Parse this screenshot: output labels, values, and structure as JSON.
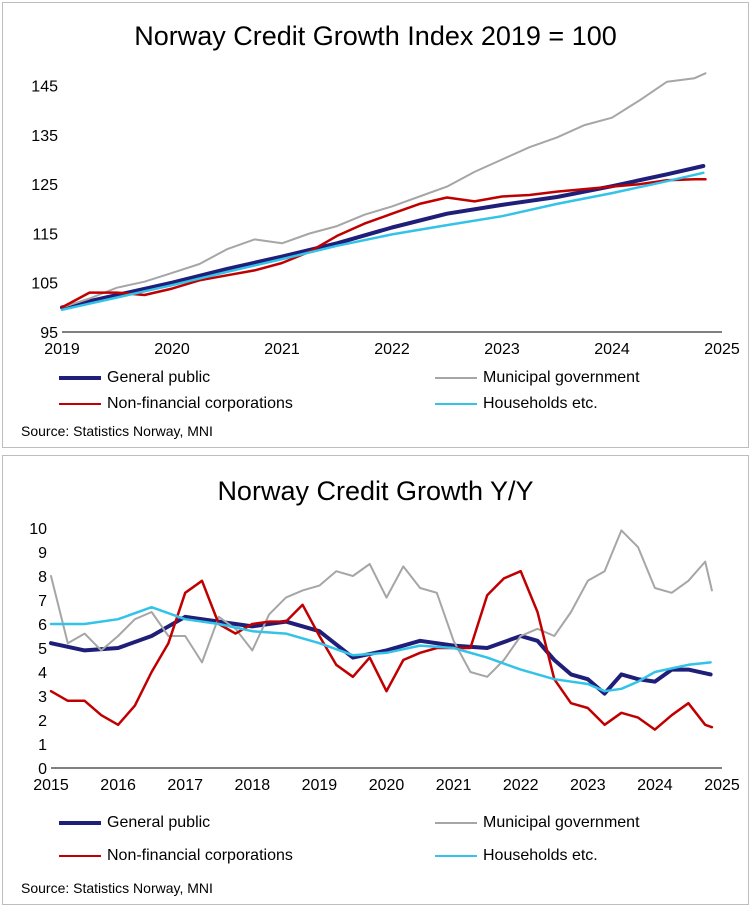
{
  "colors": {
    "general_public": "#1f1f7a",
    "municipal_government": "#a6a6a6",
    "non_financial": "#c00000",
    "households": "#33c3e8"
  },
  "legend": {
    "general_public": "General public",
    "municipal_government": "Municipal government",
    "non_financial": "Non-financial corporations",
    "households": "Households etc."
  },
  "top": {
    "title": "Norway Credit Growth Index 2019 = 100",
    "source": "Source: Statistics Norway, MNI"
  },
  "bottom": {
    "title": "Norway Credit Growth Y/Y",
    "source": "Source: Statistics Norway, MNI"
  },
  "chart_data": [
    {
      "type": "line",
      "title": "Norway Credit Growth Index 2019 = 100",
      "x_ticks": [
        "2019",
        "2020",
        "2021",
        "2022",
        "2023",
        "2024",
        "2025"
      ],
      "y_ticks": [
        "95",
        "105",
        "115",
        "125",
        "135",
        "145"
      ],
      "xlim": [
        2019,
        2025
      ],
      "ylim": [
        95,
        150
      ],
      "grid": false,
      "legend_position": "bottom",
      "series": [
        {
          "name": "General public",
          "key": "general_public",
          "x": [
            2019,
            2019.5,
            2020,
            2020.5,
            2021,
            2021.5,
            2022,
            2022.5,
            2023,
            2023.5,
            2024,
            2024.5,
            2024.83
          ],
          "y": [
            100,
            102.5,
            105,
            107.8,
            110.3,
            113,
            116.2,
            119,
            120.8,
            122.4,
            124.6,
            127,
            128.7
          ]
        },
        {
          "name": "Municipal government",
          "key": "municipal_government",
          "x": [
            2019,
            2019.25,
            2019.5,
            2019.75,
            2020,
            2020.25,
            2020.5,
            2020.75,
            2021,
            2021.25,
            2021.5,
            2021.75,
            2022,
            2022.25,
            2022.5,
            2022.75,
            2023,
            2023.25,
            2023.5,
            2023.75,
            2024,
            2024.25,
            2024.5,
            2024.75,
            2024.85
          ],
          "y": [
            100,
            101.8,
            104,
            105.2,
            107,
            108.8,
            111.8,
            113.8,
            113,
            115,
            116.5,
            118.8,
            120.5,
            122.5,
            124.5,
            127.5,
            130,
            132.5,
            134.5,
            137,
            138.5,
            142,
            145.8,
            146.5,
            147.5
          ]
        },
        {
          "name": "Non-financial corporations",
          "key": "non_financial",
          "x": [
            2019,
            2019.25,
            2019.5,
            2019.75,
            2020,
            2020.25,
            2020.5,
            2020.75,
            2021,
            2021.25,
            2021.5,
            2021.75,
            2022,
            2022.25,
            2022.5,
            2022.75,
            2023,
            2023.25,
            2023.5,
            2023.75,
            2024,
            2024.25,
            2024.5,
            2024.75,
            2024.85
          ],
          "y": [
            100,
            103,
            103,
            102.5,
            103.8,
            105.5,
            106.5,
            107.5,
            109,
            111.3,
            114.5,
            117,
            119,
            121,
            122.3,
            121.5,
            122.5,
            122.8,
            123.5,
            124,
            124.5,
            125,
            125.8,
            126,
            126
          ]
        },
        {
          "name": "Households etc.",
          "key": "households",
          "x": [
            2019,
            2019.5,
            2020,
            2020.5,
            2021,
            2021.5,
            2022,
            2022.5,
            2023,
            2023.5,
            2024,
            2024.5,
            2024.83
          ],
          "y": [
            99.5,
            102,
            104.5,
            107.2,
            109.8,
            112.5,
            114.8,
            116.7,
            118.5,
            121,
            123.2,
            125.6,
            127.3
          ]
        }
      ]
    },
    {
      "type": "line",
      "title": "Norway Credit Growth Y/Y",
      "x_ticks": [
        "2015",
        "2016",
        "2017",
        "2018",
        "2019",
        "2020",
        "2021",
        "2022",
        "2023",
        "2024",
        "2025"
      ],
      "y_ticks": [
        "0",
        "1",
        "2",
        "3",
        "4",
        "5",
        "6",
        "7",
        "8",
        "9",
        "10"
      ],
      "xlim": [
        2015,
        2025
      ],
      "ylim": [
        0,
        10
      ],
      "grid": false,
      "legend_position": "bottom",
      "series": [
        {
          "name": "General public",
          "key": "general_public",
          "x": [
            2015,
            2015.5,
            2016,
            2016.5,
            2017,
            2017.5,
            2018,
            2018.5,
            2019,
            2019.5,
            2020,
            2020.5,
            2021,
            2021.5,
            2022,
            2022.25,
            2022.5,
            2022.75,
            2023,
            2023.25,
            2023.5,
            2023.75,
            2024,
            2024.25,
            2024.5,
            2024.83
          ],
          "y": [
            5.2,
            4.9,
            5,
            5.5,
            6.3,
            6.1,
            5.9,
            6.1,
            5.7,
            4.6,
            4.9,
            5.3,
            5.1,
            5,
            5.5,
            5.3,
            4.5,
            3.9,
            3.7,
            3.1,
            3.9,
            3.7,
            3.6,
            4.1,
            4.1,
            3.9
          ]
        },
        {
          "name": "Municipal government",
          "key": "municipal_government",
          "x": [
            2015,
            2015.25,
            2015.5,
            2015.75,
            2016,
            2016.25,
            2016.5,
            2016.75,
            2017,
            2017.25,
            2017.5,
            2017.75,
            2018,
            2018.25,
            2018.5,
            2018.75,
            2019,
            2019.25,
            2019.5,
            2019.75,
            2020,
            2020.25,
            2020.5,
            2020.75,
            2021,
            2021.25,
            2021.5,
            2021.75,
            2022,
            2022.25,
            2022.5,
            2022.75,
            2023,
            2023.25,
            2023.5,
            2023.75,
            2024,
            2024.25,
            2024.5,
            2024.75,
            2024.85
          ],
          "y": [
            8,
            5.2,
            5.6,
            4.9,
            5.5,
            6.2,
            6.5,
            5.5,
            5.5,
            4.4,
            6.3,
            5.8,
            4.9,
            6.4,
            7.1,
            7.4,
            7.6,
            8.2,
            8,
            8.5,
            7.1,
            8.4,
            7.5,
            7.3,
            5.3,
            4,
            3.8,
            4.5,
            5.5,
            5.8,
            5.5,
            6.5,
            7.8,
            8.2,
            9.9,
            9.2,
            7.5,
            7.3,
            7.8,
            8.6,
            7.4
          ]
        },
        {
          "name": "Non-financial corporations",
          "key": "non_financial",
          "x": [
            2015,
            2015.25,
            2015.5,
            2015.75,
            2016,
            2016.25,
            2016.5,
            2016.75,
            2017,
            2017.25,
            2017.5,
            2017.75,
            2018,
            2018.25,
            2018.5,
            2018.75,
            2019,
            2019.25,
            2019.5,
            2019.75,
            2020,
            2020.25,
            2020.5,
            2020.75,
            2021,
            2021.25,
            2021.5,
            2021.75,
            2022,
            2022.25,
            2022.5,
            2022.75,
            2023,
            2023.25,
            2023.5,
            2023.75,
            2024,
            2024.25,
            2024.5,
            2024.75,
            2024.85
          ],
          "y": [
            3.2,
            2.8,
            2.8,
            2.2,
            1.8,
            2.6,
            4,
            5.2,
            7.3,
            7.8,
            6,
            5.6,
            6,
            6.1,
            6.1,
            6.8,
            5.5,
            4.3,
            3.8,
            4.6,
            3.2,
            4.5,
            4.8,
            5,
            5,
            5,
            7.2,
            7.9,
            8.2,
            6.5,
            3.7,
            2.7,
            2.5,
            1.8,
            2.3,
            2.1,
            1.6,
            2.2,
            2.7,
            1.8,
            1.7
          ]
        },
        {
          "name": "Households etc.",
          "key": "households",
          "x": [
            2015,
            2015.5,
            2016,
            2016.5,
            2017,
            2017.5,
            2018,
            2018.5,
            2019,
            2019.5,
            2020,
            2020.5,
            2021,
            2021.5,
            2022,
            2022.5,
            2023,
            2023.25,
            2023.5,
            2023.75,
            2024,
            2024.5,
            2024.83
          ],
          "y": [
            6,
            6,
            6.2,
            6.7,
            6.2,
            6,
            5.7,
            5.6,
            5.2,
            4.7,
            4.8,
            5.1,
            5,
            4.6,
            4.1,
            3.7,
            3.5,
            3.2,
            3.3,
            3.6,
            4,
            4.3,
            4.4
          ]
        }
      ]
    }
  ]
}
